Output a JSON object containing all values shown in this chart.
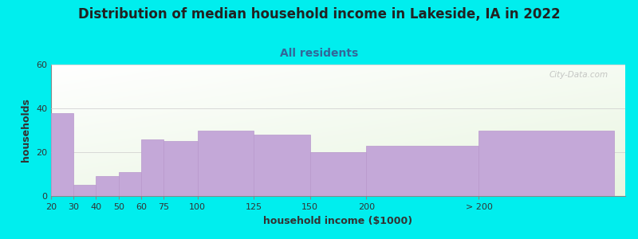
{
  "title": "Distribution of median household income in Lakeside, IA in 2022",
  "subtitle": "All residents",
  "xlabel": "household income ($1000)",
  "ylabel": "households",
  "background_color": "#00EEEE",
  "bar_color": "#C4A8D8",
  "bar_edge_color": "#b898cc",
  "categories": [
    "20",
    "30",
    "40",
    "50",
    "60",
    "75",
    "100",
    "125",
    "150",
    "200",
    "> 200"
  ],
  "left_edges": [
    10,
    20,
    30,
    40,
    50,
    60,
    75,
    100,
    125,
    150,
    200
  ],
  "widths": [
    10,
    10,
    10,
    10,
    10,
    15,
    25,
    25,
    25,
    50,
    60
  ],
  "values": [
    38,
    5,
    9,
    11,
    26,
    25,
    30,
    28,
    20,
    23,
    30
  ],
  "ylim": [
    0,
    60
  ],
  "yticks": [
    0,
    20,
    40,
    60
  ],
  "title_fontsize": 12,
  "subtitle_fontsize": 10,
  "axis_label_fontsize": 9,
  "tick_fontsize": 8,
  "watermark": "City-Data.com",
  "xlim_left": 10,
  "xlim_right": 265
}
